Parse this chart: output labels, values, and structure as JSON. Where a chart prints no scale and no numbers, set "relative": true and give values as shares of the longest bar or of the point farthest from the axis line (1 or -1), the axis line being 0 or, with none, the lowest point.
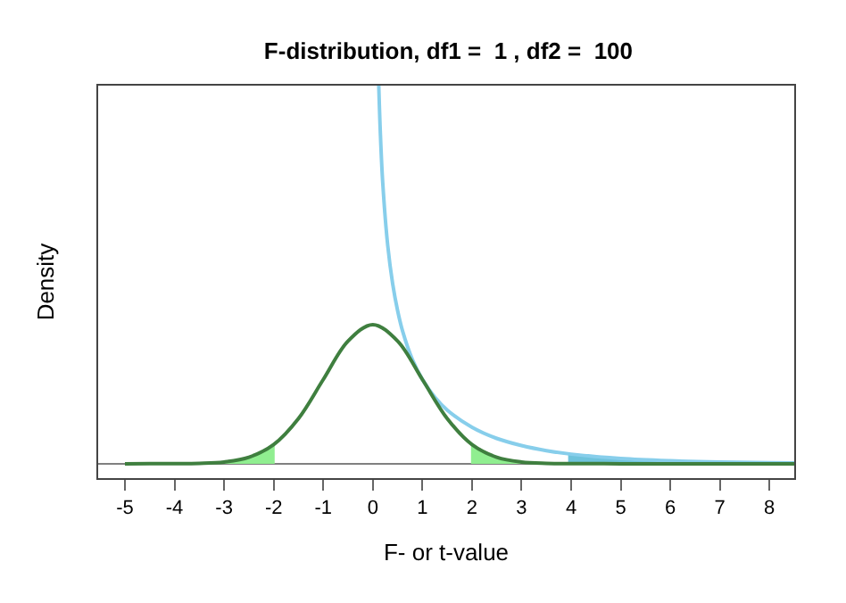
{
  "chart_data": {
    "type": "line",
    "title": "F-distribution, df1 =  1 , df2 =  100",
    "xlabel": "F- or t-value",
    "ylabel": "Density",
    "relative": true,
    "xlim": [
      -5.54,
      8.5
    ],
    "xticks": [
      -5,
      -4,
      -3,
      -2,
      -1,
      0,
      1,
      2,
      3,
      4,
      5,
      6,
      7,
      8
    ],
    "grid": false,
    "marker": "none",
    "line_style": "solid",
    "ref_lines": [
      {
        "axis": "y",
        "value": 0,
        "color": "#808080"
      }
    ],
    "series": [
      {
        "type": "area",
        "color": "#90ee90",
        "x": [
          -5,
          -4.5,
          -4,
          -3.5,
          -3,
          -2.5,
          -1.98
        ],
        "values": [
          2e-05,
          7e-05,
          0.0002,
          0.0011,
          0.0047,
          0.0172,
          0.0528
        ]
      },
      {
        "type": "area",
        "color": "#90ee90",
        "x": [
          1.98,
          2,
          2.5,
          3,
          3.5,
          4,
          4.5,
          5,
          6,
          7,
          8,
          8.5
        ],
        "values": [
          0.0528,
          0.0508,
          0.0172,
          0.0047,
          0.0011,
          0.0002,
          7e-05,
          2e-05,
          0,
          0,
          0,
          0
        ]
      },
      {
        "type": "area",
        "color": "#6ec3dc",
        "x": [
          3.94,
          4,
          5,
          6,
          7,
          8,
          8.5
        ],
        "values": [
          0.026,
          0.0254,
          0.0139,
          0.0079,
          0.0045,
          0.0027,
          0.002
        ]
      },
      {
        "color": "#87ceeb",
        "x": [
          0.12,
          0.15,
          0.2,
          0.3,
          0.4,
          0.5,
          0.6,
          0.8,
          1,
          1.25,
          1.5,
          2,
          2.5,
          3,
          3.5,
          4,
          5,
          6,
          7,
          8,
          8.5
        ],
        "values": [
          1,
          0.88,
          0.743,
          0.578,
          0.476,
          0.405,
          0.351,
          0.275,
          0.223,
          0.176,
          0.142,
          0.0965,
          0.067,
          0.048,
          0.0346,
          0.0254,
          0.0139,
          0.0079,
          0.0045,
          0.0027,
          0.002
        ]
      },
      {
        "color": "#3f7f3f",
        "x": [
          -5,
          -4.5,
          -4,
          -3.5,
          -3,
          -2.5,
          -2,
          -1.5,
          -1,
          -0.5,
          0,
          0.5,
          1,
          1.5,
          2,
          2.5,
          3,
          3.5,
          4,
          4.5,
          5,
          6,
          7,
          8,
          8.5
        ],
        "values": [
          2e-05,
          7e-05,
          0.0002,
          0.0011,
          0.0047,
          0.0172,
          0.0508,
          0.1196,
          0.2226,
          0.3243,
          0.368,
          0.3243,
          0.2226,
          0.1196,
          0.0508,
          0.0172,
          0.0047,
          0.0011,
          0.0002,
          7e-05,
          2e-05,
          0,
          0,
          0,
          0
        ]
      }
    ]
  }
}
